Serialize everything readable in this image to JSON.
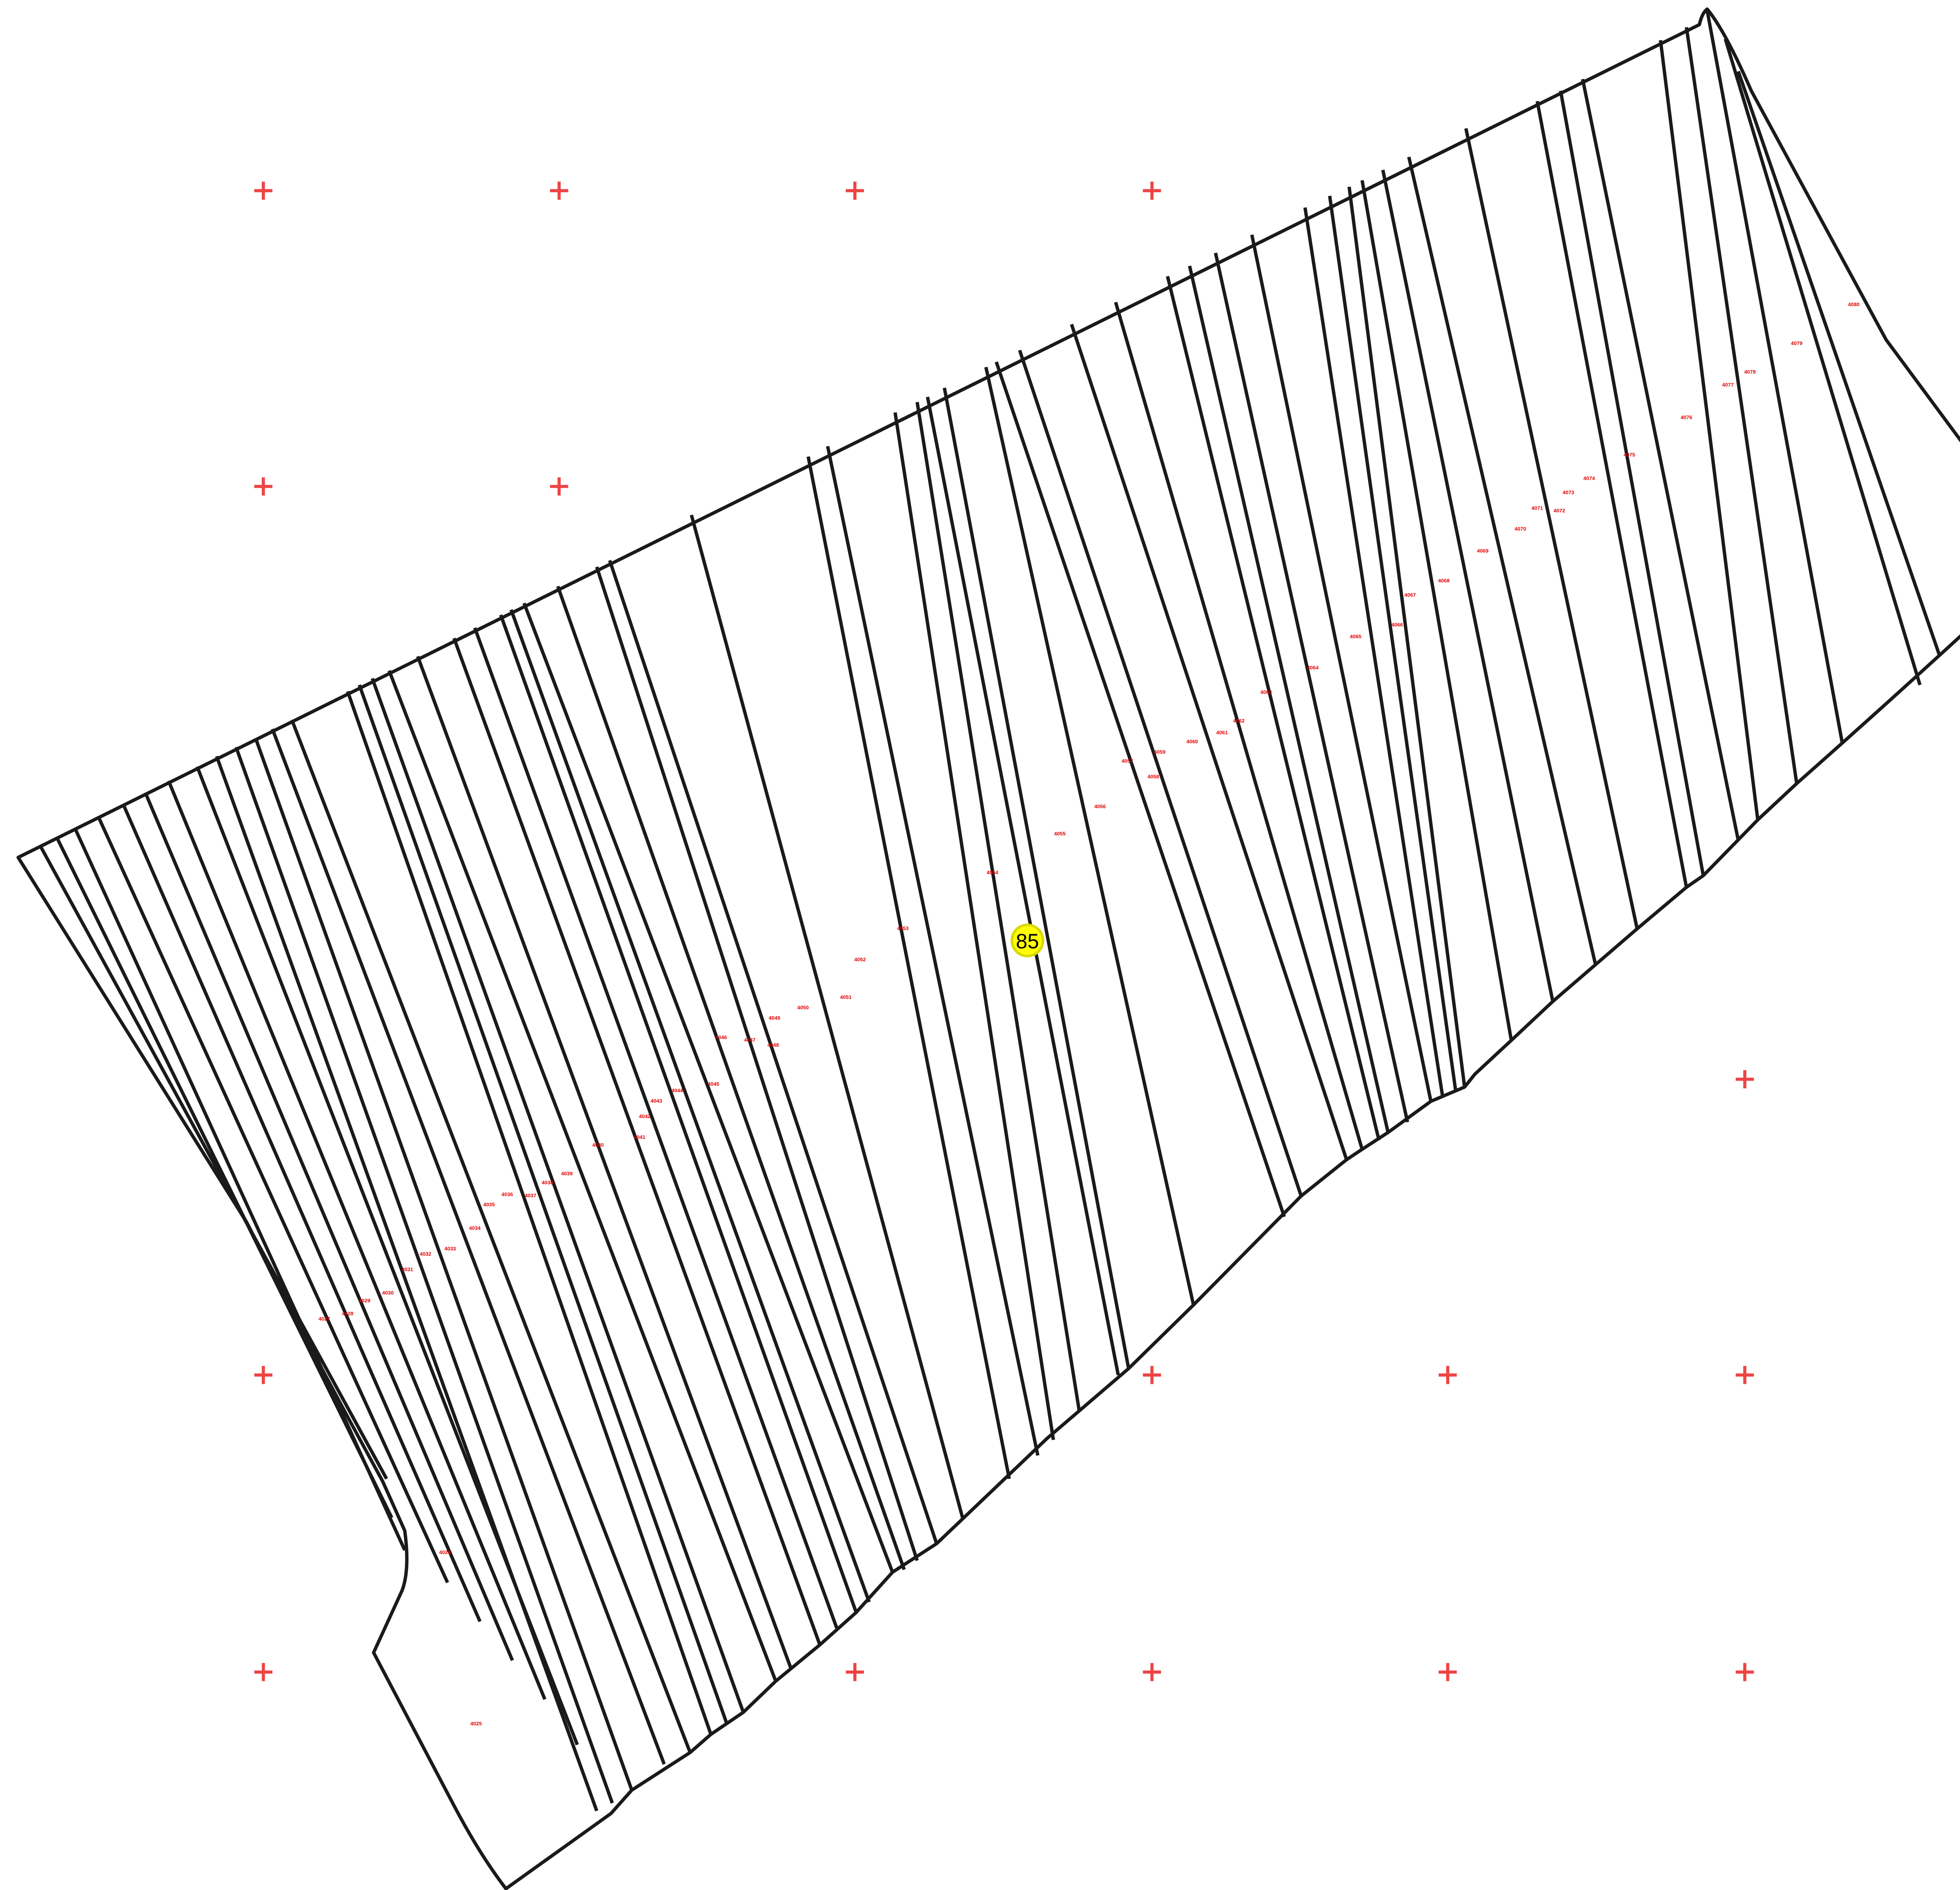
{
  "map": {
    "sheet_marker": "85",
    "colors": {
      "background": "#ffffff",
      "parcel_lines": "#1a1a1a",
      "grid_crosses": "#ee4444",
      "parcel_labels": "#e60000",
      "marker_fill": "#ffff00"
    },
    "parcel_labels": [
      "4025",
      "4026",
      "4027",
      "4028",
      "4029",
      "4030",
      "4031",
      "4032",
      "4033",
      "4034",
      "4035",
      "4036",
      "4037",
      "4038",
      "4039",
      "4040",
      "4041",
      "4042",
      "4043",
      "4044",
      "4045",
      "4046",
      "4047",
      "4048",
      "4049",
      "4050",
      "4051",
      "4052",
      "4053",
      "4054",
      "4055",
      "4056",
      "4057",
      "4058",
      "4059",
      "4060",
      "4061",
      "4062",
      "4063",
      "4064",
      "4065",
      "4066",
      "4067",
      "4068",
      "4069",
      "4070",
      "4071",
      "4072",
      "4073",
      "4074",
      "4075",
      "4076",
      "4077",
      "4078",
      "4079",
      "4080"
    ]
  }
}
